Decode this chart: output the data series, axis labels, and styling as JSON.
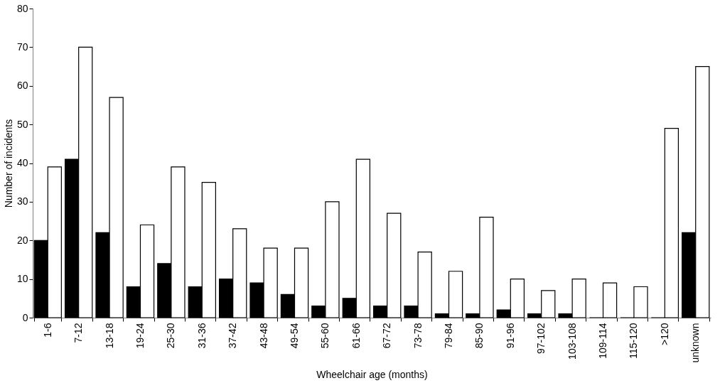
{
  "chart_data": {
    "type": "bar",
    "xlabel": "Wheelchair age (months)",
    "ylabel": "Number of incidents",
    "categories": [
      "1-6",
      "7-12",
      "13-18",
      "19-24",
      "25-30",
      "31-36",
      "37-42",
      "43-48",
      "49-54",
      "55-60",
      "61-66",
      "67-72",
      "73-78",
      "79-84",
      "85-90",
      "91-96",
      "97-102",
      "103-108",
      "109-114",
      "115-120",
      ">120",
      "unknown"
    ],
    "series": [
      {
        "color": "#000000",
        "values": [
          20,
          41,
          22,
          8,
          14,
          8,
          10,
          9,
          6,
          3,
          5,
          3,
          3,
          1,
          1,
          2,
          1,
          1,
          0,
          0,
          0,
          22
        ]
      },
      {
        "color": "#ffffff",
        "values": [
          39,
          70,
          57,
          24,
          39,
          35,
          23,
          18,
          18,
          30,
          41,
          27,
          17,
          12,
          26,
          10,
          7,
          10,
          9,
          8,
          49,
          65
        ]
      }
    ],
    "ylim": [
      0,
      80
    ],
    "yticks": [
      0,
      10,
      20,
      30,
      40,
      50,
      60,
      70,
      80
    ],
    "grid": false
  }
}
